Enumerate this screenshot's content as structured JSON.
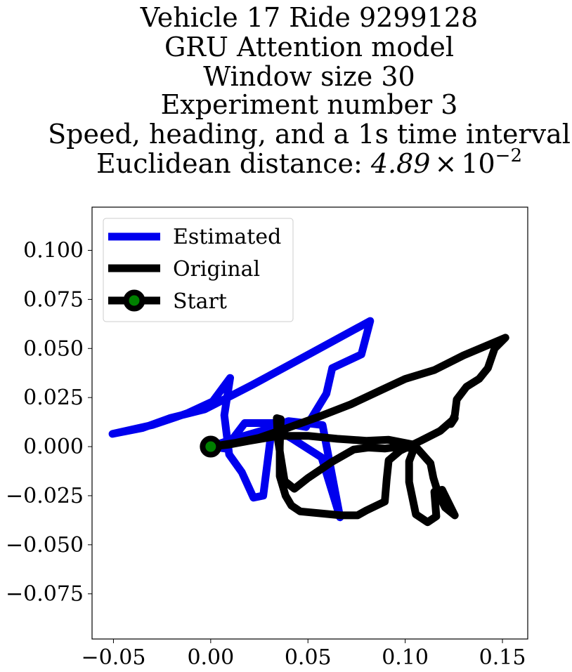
{
  "chart_data": {
    "type": "line",
    "title_lines": [
      "Vehicle 17 Ride 9299128",
      "GRU Attention model",
      "Window size 30",
      "Experiment number 3",
      "Speed, heading, and a 1s time interval"
    ],
    "title_distance_prefix": "Euclidean distance: ",
    "title_distance_mantissa": "4.89",
    "title_distance_times": "×",
    "title_distance_base": "10",
    "title_distance_exponent": "−2",
    "xlabel": "",
    "ylabel": "",
    "xlim": [
      -0.061,
      0.163
    ],
    "ylim": [
      -0.098,
      0.122
    ],
    "xticks": [
      -0.05,
      0.0,
      0.05,
      0.1,
      0.15
    ],
    "xtick_labels": [
      "−0.05",
      "0.00",
      "0.05",
      "0.10",
      "0.15"
    ],
    "yticks": [
      0.1,
      0.075,
      0.05,
      0.025,
      0.0,
      -0.025,
      -0.05,
      -0.075
    ],
    "ytick_labels": [
      "0.100",
      "0.075",
      "0.050",
      "0.025",
      "0.000",
      "−0.025",
      "−0.050",
      "−0.075"
    ],
    "grid": false,
    "legend_position": "upper-left",
    "series": [
      {
        "name": "Estimated",
        "color": "#0000ee",
        "points": [
          [
            0.0,
            0.0
          ],
          [
            0.0075,
            -0.001
          ],
          [
            0.0175,
            0.012
          ],
          [
            0.0285,
            0.012
          ],
          [
            0.037,
            0.012
          ],
          [
            0.049,
            0.01
          ],
          [
            0.0595,
            0.027
          ],
          [
            0.0625,
            0.04
          ],
          [
            0.0775,
            0.047
          ],
          [
            0.082,
            0.064
          ],
          [
            0.0495,
            0.0465
          ],
          [
            0.0215,
            0.0315
          ],
          [
            -0.003,
            0.019
          ],
          [
            -0.021,
            0.0145
          ],
          [
            -0.035,
            0.0095
          ],
          [
            -0.0505,
            0.0065
          ],
          [
            -0.03,
            0.011
          ],
          [
            -0.012,
            0.017
          ],
          [
            0.001,
            0.023
          ],
          [
            0.01,
            0.035
          ],
          [
            0.007,
            0.016
          ],
          [
            0.0095,
            -0.004
          ],
          [
            0.016,
            -0.013
          ],
          [
            0.022,
            -0.026
          ],
          [
            0.027,
            -0.025
          ],
          [
            0.0315,
            0.01
          ],
          [
            0.042,
            0.004
          ],
          [
            0.057,
            -0.0055
          ],
          [
            0.0665,
            -0.036
          ],
          [
            0.0575,
            0.011
          ],
          [
            0.04,
            0.013
          ],
          [
            0.026,
            0.008
          ],
          [
            0.012,
            0.004
          ],
          [
            0.0,
            0.0
          ]
        ]
      },
      {
        "name": "Original",
        "color": "#000000",
        "points": [
          [
            0.0,
            0.0
          ],
          [
            0.013,
            0.002
          ],
          [
            0.025,
            0.0045
          ],
          [
            0.038,
            0.009
          ],
          [
            0.055,
            0.015
          ],
          [
            0.072,
            0.0215
          ],
          [
            0.087,
            0.0285
          ],
          [
            0.1,
            0.0345
          ],
          [
            0.115,
            0.039
          ],
          [
            0.13,
            0.0465
          ],
          [
            0.142,
            0.0515
          ],
          [
            0.1515,
            0.0555
          ],
          [
            0.146,
            0.05
          ],
          [
            0.1425,
            0.04
          ],
          [
            0.138,
            0.0345
          ],
          [
            0.1315,
            0.0305
          ],
          [
            0.1265,
            0.024
          ],
          [
            0.1255,
            0.016
          ],
          [
            0.1235,
            0.0115
          ],
          [
            0.1255,
            0.0145
          ],
          [
            0.118,
            0.008
          ],
          [
            0.108,
            0.003
          ],
          [
            0.0975,
            -0.002
          ],
          [
            0.0915,
            -0.007
          ],
          [
            0.0905,
            -0.0165
          ],
          [
            0.0895,
            -0.028
          ],
          [
            0.08,
            -0.0325
          ],
          [
            0.0755,
            -0.035
          ],
          [
            0.067,
            -0.035
          ],
          [
            0.046,
            -0.033
          ],
          [
            0.0415,
            -0.03
          ],
          [
            0.0385,
            -0.025
          ],
          [
            0.0355,
            -0.015
          ],
          [
            0.0355,
            0.0
          ],
          [
            0.036,
            0.014
          ],
          [
            0.034,
            0.0145
          ],
          [
            0.0345,
            0.004
          ],
          [
            0.038,
            -0.0175
          ],
          [
            0.043,
            -0.0215
          ],
          [
            0.05,
            -0.016
          ],
          [
            0.062,
            -0.008
          ],
          [
            0.0735,
            -0.0015
          ],
          [
            0.081,
            -0.0005
          ],
          [
            0.0895,
            -0.001
          ],
          [
            0.0975,
            0.0
          ],
          [
            0.1045,
            -0.001
          ],
          [
            0.102,
            -0.0075
          ],
          [
            0.102,
            -0.018
          ],
          [
            0.1055,
            -0.0345
          ],
          [
            0.1115,
            -0.0385
          ],
          [
            0.116,
            -0.0355
          ],
          [
            0.115,
            -0.023
          ],
          [
            0.119,
            -0.022
          ],
          [
            0.1255,
            -0.035
          ],
          [
            0.1205,
            -0.031
          ],
          [
            0.117,
            -0.024
          ],
          [
            0.1145,
            -0.016
          ],
          [
            0.113,
            -0.0085
          ],
          [
            0.1045,
            0.001
          ],
          [
            0.0915,
            0.0035
          ],
          [
            0.08,
            0.003
          ],
          [
            0.065,
            0.004
          ],
          [
            0.05,
            0.0055
          ],
          [
            0.035,
            0.0055
          ],
          [
            0.02,
            0.003
          ],
          [
            0.009,
            0.001
          ],
          [
            0.0,
            0.0
          ]
        ]
      }
    ],
    "start_marker": {
      "name": "Start",
      "point": [
        0.0,
        0.0
      ],
      "edge_color": "#000000",
      "face_color": "#008000"
    }
  }
}
